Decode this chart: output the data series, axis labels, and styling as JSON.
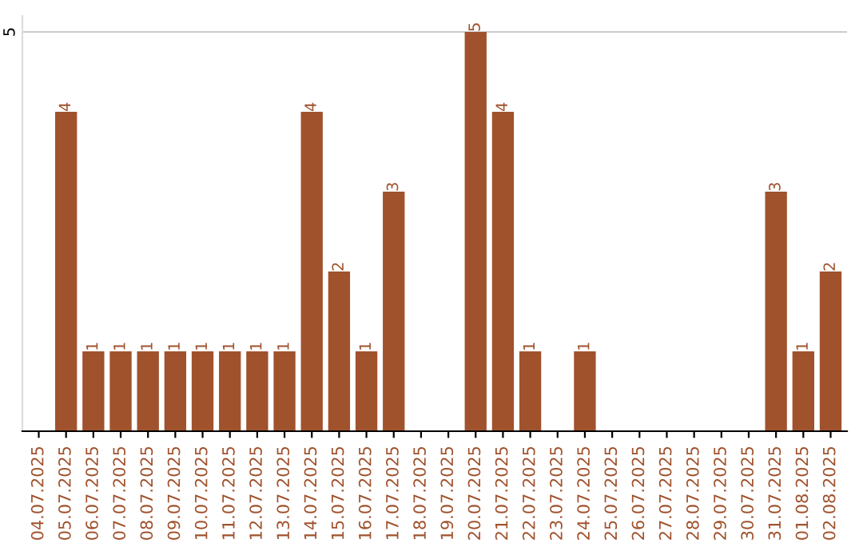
{
  "chart_data": {
    "type": "bar",
    "categories": [
      "04.07.2025",
      "05.07.2025",
      "06.07.2025",
      "07.07.2025",
      "08.07.2025",
      "09.07.2025",
      "10.07.2025",
      "11.07.2025",
      "12.07.2025",
      "13.07.2025",
      "14.07.2025",
      "15.07.2025",
      "16.07.2025",
      "17.07.2025",
      "18.07.2025",
      "19.07.2025",
      "20.07.2025",
      "21.07.2025",
      "22.07.2025",
      "23.07.2025",
      "24.07.2025",
      "25.07.2025",
      "26.07.2025",
      "27.07.2025",
      "28.07.2025",
      "29.07.2025",
      "30.07.2025",
      "31.07.2025",
      "01.08.2025",
      "02.08.2025"
    ],
    "series": [
      {
        "color": "#a0522d",
        "values": [
          0,
          4,
          1,
          1,
          1,
          1,
          1,
          1,
          1,
          1,
          4,
          2,
          1,
          3,
          0,
          0,
          5,
          4,
          1,
          0,
          1,
          0,
          0,
          0,
          0,
          0,
          0,
          3,
          1,
          2
        ],
        "value_labels": [
          null,
          "4",
          "1",
          "1",
          "1",
          "1",
          "1",
          "1",
          "1",
          "1",
          "4",
          "2",
          "1",
          "3",
          null,
          null,
          "5",
          "4",
          "1",
          null,
          "1",
          null,
          null,
          null,
          null,
          null,
          null,
          "3",
          "1",
          "2"
        ]
      }
    ],
    "ylim": [
      0,
      5.2
    ],
    "yticks": [
      5
    ],
    "grid": "y",
    "legend": false
  }
}
